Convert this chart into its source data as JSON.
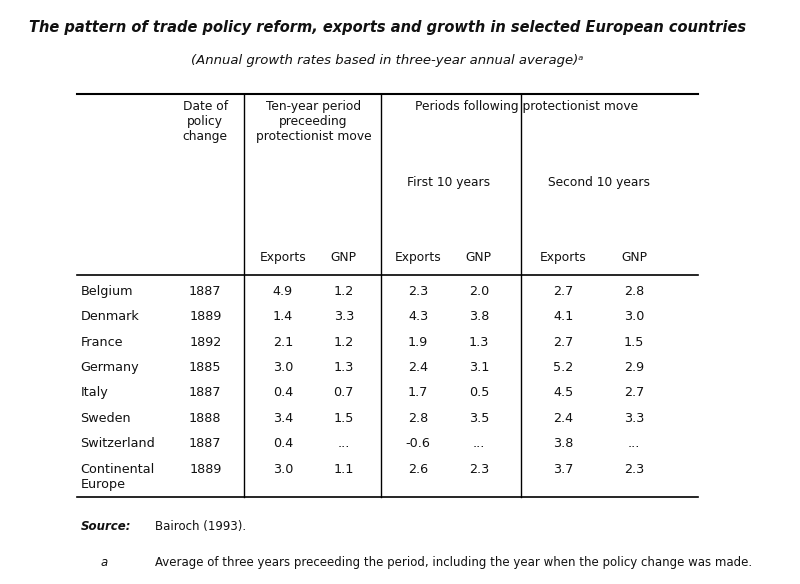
{
  "title_line1": "The pattern of trade policy reform, exports and growth in selected European countries",
  "title_line2": "(Annual growth rates based in three-year annual average)ᵃ",
  "bg_color": "#ffffff",
  "countries": [
    "Belgium",
    "Denmark",
    "France",
    "Germany",
    "Italy",
    "Sweden",
    "Switzerland",
    "Continental\nEurope"
  ],
  "dates": [
    "1887",
    "1889",
    "1892",
    "1885",
    "1887",
    "1888",
    "1887",
    "1889"
  ],
  "ten_year_exports": [
    "4.9",
    "1.4",
    "2.1",
    "3.0",
    "0.4",
    "3.4",
    "0.4",
    "3.0"
  ],
  "ten_year_gnp": [
    "1.2",
    "3.3",
    "1.2",
    "1.3",
    "0.7",
    "1.5",
    "...",
    "1.1"
  ],
  "first10_exports": [
    "2.3",
    "4.3",
    "1.9",
    "2.4",
    "1.7",
    "2.8",
    "-0.6",
    "2.6"
  ],
  "first10_gnp": [
    "2.0",
    "3.8",
    "1.3",
    "3.1",
    "0.5",
    "3.5",
    "...",
    "2.3"
  ],
  "second10_exports": [
    "2.7",
    "4.1",
    "2.7",
    "5.2",
    "4.5",
    "2.4",
    "3.8",
    "3.7"
  ],
  "second10_gnp": [
    "2.8",
    "3.0",
    "1.5",
    "2.9",
    "2.7",
    "3.3",
    "...",
    "2.3"
  ],
  "source_label": "Source:",
  "source_text": "Bairoch (1993).",
  "footnote_a": "a",
  "footnote_text": "Average of three years preceeding the period, including the year when the policy change was made."
}
